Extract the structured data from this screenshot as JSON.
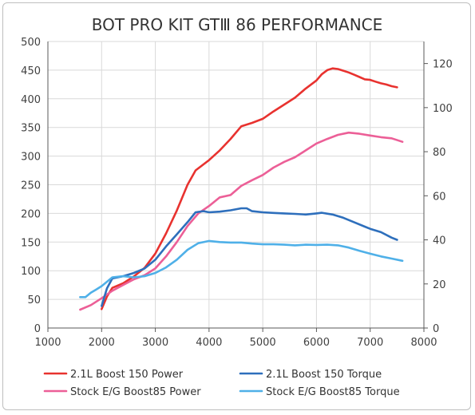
{
  "chart_data": {
    "type": "line",
    "title": "BOT PRO KIT GTⅢ 86 PERFORMANCE",
    "xlabel": "",
    "ylabel": "",
    "y2label": "",
    "xlim": [
      1000,
      8000
    ],
    "ylim": [
      0,
      500
    ],
    "y2lim": [
      0,
      130
    ],
    "x_ticks": [
      "1000",
      "2000",
      "3000",
      "4000",
      "5000",
      "6000",
      "7000",
      "8000"
    ],
    "y_ticks": [
      "0",
      "50",
      "100",
      "150",
      "200",
      "250",
      "300",
      "350",
      "400",
      "450",
      "500"
    ],
    "y2_ticks": [
      "0",
      "20",
      "40",
      "60",
      "80",
      "100",
      "120"
    ],
    "grid": true,
    "legend_position": "bottom",
    "series": [
      {
        "name": "2.1L Boost 150 Power",
        "axis": "left",
        "color": "#e8322f",
        "points": [
          [
            2000,
            33
          ],
          [
            2100,
            55
          ],
          [
            2200,
            70
          ],
          [
            2400,
            78
          ],
          [
            2600,
            90
          ],
          [
            2800,
            105
          ],
          [
            3000,
            130
          ],
          [
            3200,
            165
          ],
          [
            3400,
            205
          ],
          [
            3600,
            250
          ],
          [
            3750,
            275
          ],
          [
            4000,
            293
          ],
          [
            4200,
            310
          ],
          [
            4400,
            330
          ],
          [
            4600,
            352
          ],
          [
            4800,
            358
          ],
          [
            5000,
            365
          ],
          [
            5200,
            378
          ],
          [
            5400,
            390
          ],
          [
            5600,
            402
          ],
          [
            5800,
            418
          ],
          [
            6000,
            432
          ],
          [
            6100,
            443
          ],
          [
            6200,
            450
          ],
          [
            6300,
            453
          ],
          [
            6400,
            452
          ],
          [
            6500,
            449
          ],
          [
            6600,
            446
          ],
          [
            6700,
            442
          ],
          [
            6800,
            438
          ],
          [
            6900,
            434
          ],
          [
            7000,
            433
          ],
          [
            7100,
            430
          ],
          [
            7200,
            427
          ],
          [
            7300,
            425
          ],
          [
            7400,
            422
          ],
          [
            7500,
            420
          ]
        ]
      },
      {
        "name": "Stock E/G Boost85 Power",
        "axis": "left",
        "color": "#ec5f97",
        "points": [
          [
            1600,
            32
          ],
          [
            1800,
            40
          ],
          [
            2000,
            52
          ],
          [
            2200,
            65
          ],
          [
            2400,
            75
          ],
          [
            2600,
            85
          ],
          [
            2800,
            92
          ],
          [
            3000,
            104
          ],
          [
            3200,
            125
          ],
          [
            3400,
            150
          ],
          [
            3600,
            178
          ],
          [
            3800,
            200
          ],
          [
            4000,
            213
          ],
          [
            4200,
            228
          ],
          [
            4400,
            232
          ],
          [
            4600,
            248
          ],
          [
            4800,
            258
          ],
          [
            5000,
            267
          ],
          [
            5200,
            280
          ],
          [
            5400,
            290
          ],
          [
            5600,
            298
          ],
          [
            5800,
            310
          ],
          [
            6000,
            322
          ],
          [
            6200,
            330
          ],
          [
            6400,
            337
          ],
          [
            6600,
            341
          ],
          [
            6800,
            339
          ],
          [
            7000,
            336
          ],
          [
            7200,
            333
          ],
          [
            7400,
            331
          ],
          [
            7600,
            325
          ]
        ]
      },
      {
        "name": "2.1L Boost 150 Torque",
        "axis": "right",
        "color": "#2e6fbc",
        "points": [
          [
            2000,
            10
          ],
          [
            2100,
            18
          ],
          [
            2200,
            22.5
          ],
          [
            2400,
            23.5
          ],
          [
            2600,
            25
          ],
          [
            2800,
            27
          ],
          [
            3000,
            31
          ],
          [
            3200,
            37
          ],
          [
            3400,
            42.5
          ],
          [
            3600,
            48
          ],
          [
            3750,
            52.5
          ],
          [
            3900,
            53
          ],
          [
            4000,
            52.5
          ],
          [
            4200,
            52.8
          ],
          [
            4400,
            53.4
          ],
          [
            4600,
            54.3
          ],
          [
            4700,
            54.3
          ],
          [
            4800,
            53
          ],
          [
            5000,
            52.5
          ],
          [
            5200,
            52.2
          ],
          [
            5400,
            52
          ],
          [
            5600,
            51.8
          ],
          [
            5800,
            51.5
          ],
          [
            6000,
            52
          ],
          [
            6100,
            52.3
          ],
          [
            6300,
            51.5
          ],
          [
            6500,
            50
          ],
          [
            6700,
            48
          ],
          [
            6900,
            46
          ],
          [
            7000,
            45
          ],
          [
            7200,
            43.5
          ],
          [
            7400,
            41
          ],
          [
            7500,
            40
          ]
        ]
      },
      {
        "name": "Stock E/G Boost85 Torque",
        "axis": "right",
        "color": "#4fb0e8",
        "points": [
          [
            1600,
            14
          ],
          [
            1700,
            14
          ],
          [
            1800,
            16
          ],
          [
            1900,
            17.5
          ],
          [
            2000,
            19
          ],
          [
            2200,
            23
          ],
          [
            2400,
            23.5
          ],
          [
            2600,
            23
          ],
          [
            2800,
            23.5
          ],
          [
            3000,
            25
          ],
          [
            3200,
            27.5
          ],
          [
            3400,
            31
          ],
          [
            3600,
            35.5
          ],
          [
            3800,
            38.5
          ],
          [
            4000,
            39.5
          ],
          [
            4200,
            39
          ],
          [
            4400,
            38.8
          ],
          [
            4600,
            38.8
          ],
          [
            4800,
            38.3
          ],
          [
            5000,
            38
          ],
          [
            5200,
            38
          ],
          [
            5400,
            37.8
          ],
          [
            5600,
            37.5
          ],
          [
            5800,
            37.8
          ],
          [
            6000,
            37.7
          ],
          [
            6200,
            37.8
          ],
          [
            6400,
            37.5
          ],
          [
            6600,
            36.5
          ],
          [
            6800,
            35
          ],
          [
            7000,
            33.7
          ],
          [
            7200,
            32.5
          ],
          [
            7400,
            31.5
          ],
          [
            7600,
            30.5
          ]
        ]
      }
    ]
  }
}
